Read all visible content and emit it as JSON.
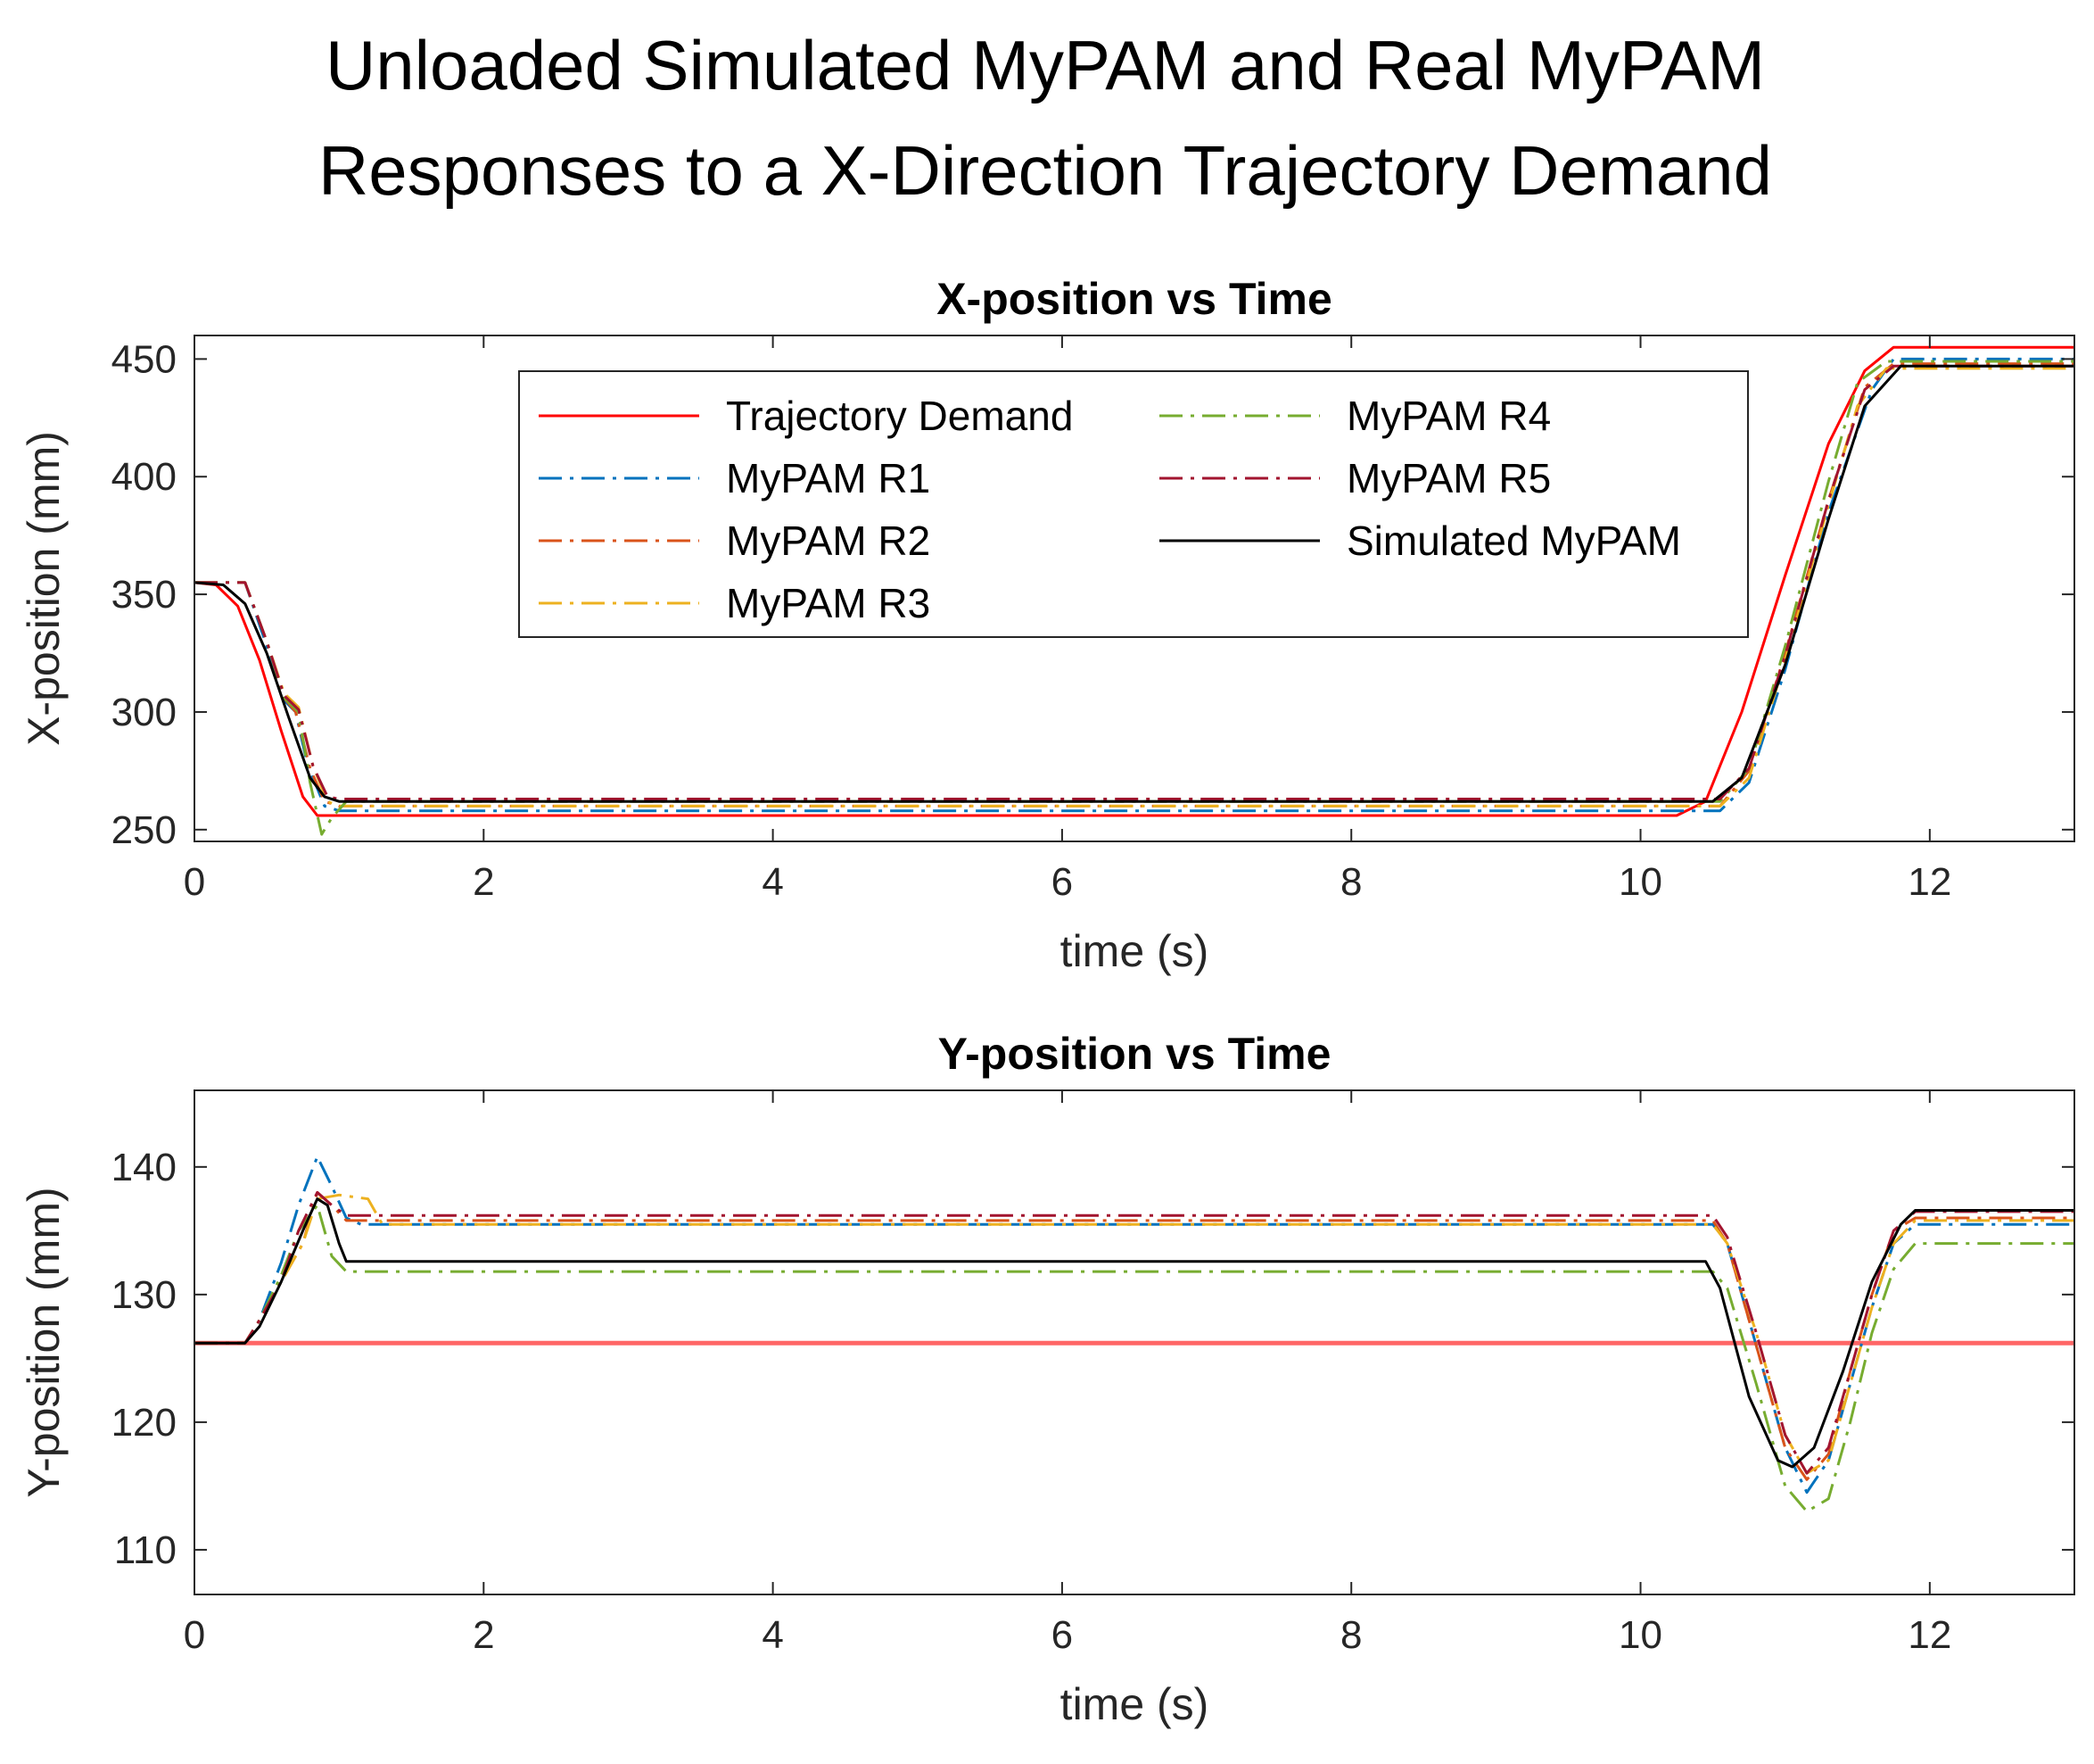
{
  "figure_title_line1": "Unloaded Simulated MyPAM and Real MyPAM",
  "figure_title_line2": "Responses to a X-Direction Trajectory Demand",
  "chart_data": [
    {
      "type": "line",
      "id": "xpos",
      "title": "X-position vs Time",
      "xlabel": "time (s)",
      "ylabel": "X-position (mm)",
      "xlim": [
        0,
        13
      ],
      "ylim": [
        245,
        460
      ],
      "xticks": [
        0,
        2,
        4,
        6,
        8,
        10,
        12
      ],
      "yticks": [
        250,
        300,
        350,
        400,
        450
      ],
      "legend_position": "top-center",
      "series": [
        {
          "name": "Trajectory Demand",
          "color": "#ff0000",
          "dash": "solid",
          "x": [
            0,
            0.15,
            0.3,
            0.45,
            0.6,
            0.75,
            0.85,
            10.25,
            10.45,
            10.7,
            11.0,
            11.3,
            11.55,
            11.75,
            13
          ],
          "y": [
            355,
            354,
            345,
            322,
            292,
            264,
            256,
            256,
            262,
            300,
            358,
            414,
            445,
            455,
            455
          ]
        },
        {
          "name": "MyPAM R1",
          "color": "#0072bd",
          "dash": "dashdot",
          "x": [
            0,
            0.35,
            0.5,
            0.62,
            0.7,
            0.78,
            0.9,
            1.0,
            10.55,
            10.75,
            11.0,
            11.3,
            11.6,
            11.75,
            13
          ],
          "y": [
            355,
            355,
            328,
            305,
            300,
            278,
            260,
            258,
            258,
            270,
            318,
            385,
            437,
            450,
            450
          ]
        },
        {
          "name": "MyPAM R2",
          "color": "#d95319",
          "dash": "dashdot",
          "x": [
            0,
            0.35,
            0.5,
            0.62,
            0.7,
            0.8,
            0.9,
            1.0,
            10.55,
            10.75,
            11.0,
            11.3,
            11.55,
            11.75,
            13
          ],
          "y": [
            355,
            355,
            330,
            306,
            300,
            276,
            262,
            260,
            260,
            275,
            325,
            390,
            438,
            448,
            448
          ]
        },
        {
          "name": "MyPAM R3",
          "color": "#edb120",
          "dash": "dashdot",
          "x": [
            0,
            0.35,
            0.5,
            0.62,
            0.72,
            0.82,
            0.92,
            1.0,
            10.55,
            10.75,
            11.0,
            11.3,
            11.5,
            11.7,
            13
          ],
          "y": [
            355,
            355,
            330,
            308,
            302,
            277,
            262,
            260,
            260,
            272,
            322,
            388,
            430,
            446,
            446
          ]
        },
        {
          "name": "MyPAM R4",
          "color": "#77ac30",
          "dash": "dashdot",
          "x": [
            0,
            0.35,
            0.5,
            0.62,
            0.72,
            0.8,
            0.88,
            0.95,
            1.05,
            10.55,
            10.75,
            11.0,
            11.3,
            11.5,
            11.7,
            13
          ],
          "y": [
            355,
            355,
            330,
            306,
            300,
            270,
            248,
            255,
            262,
            262,
            276,
            328,
            398,
            440,
            449,
            449
          ]
        },
        {
          "name": "MyPAM R5",
          "color": "#a2142f",
          "dash": "dashdot",
          "x": [
            0,
            0.35,
            0.5,
            0.62,
            0.72,
            0.82,
            0.92,
            1.0,
            10.55,
            10.75,
            11.0,
            11.3,
            11.55,
            11.75,
            13
          ],
          "y": [
            355,
            355,
            330,
            307,
            301,
            277,
            264,
            263,
            263,
            276,
            324,
            390,
            437,
            447,
            447
          ]
        },
        {
          "name": "Simulated MyPAM",
          "color": "#000000",
          "dash": "solid",
          "x": [
            0,
            0.2,
            0.35,
            0.5,
            0.65,
            0.8,
            0.9,
            1.0,
            10.5,
            10.7,
            11.0,
            11.3,
            11.55,
            11.8,
            13
          ],
          "y": [
            355,
            354,
            346,
            325,
            298,
            272,
            264,
            262,
            262,
            272,
            320,
            382,
            430,
            447,
            447
          ]
        }
      ]
    },
    {
      "type": "line",
      "id": "ypos",
      "title": "Y-position vs Time",
      "xlabel": "time (s)",
      "ylabel": "Y-position (mm)",
      "xlim": [
        0,
        13
      ],
      "ylim": [
        106.5,
        146
      ],
      "xticks": [
        0,
        2,
        4,
        6,
        8,
        10,
        12
      ],
      "yticks": [
        110,
        120,
        130,
        140
      ],
      "series": [
        {
          "name": "Trajectory Demand",
          "color": "#ff0000",
          "dash": "solid",
          "x": [
            0,
            13
          ],
          "y": [
            126.2,
            126.2
          ]
        },
        {
          "name": "MyPAM R1",
          "color": "#0072bd",
          "dash": "dashdot",
          "x": [
            0,
            0.35,
            0.45,
            0.6,
            0.72,
            0.85,
            0.95,
            1.05,
            1.15,
            1.3,
            10.5,
            10.6,
            10.8,
            11.0,
            11.15,
            11.3,
            11.45,
            11.6,
            11.75,
            11.9,
            13
          ],
          "y": [
            126.2,
            126.2,
            128,
            132.5,
            137,
            140.8,
            138.5,
            136,
            135.5,
            135.5,
            135.5,
            134,
            126,
            118,
            114.5,
            117,
            123,
            129,
            134,
            135.5,
            135.5
          ]
        },
        {
          "name": "MyPAM R2",
          "color": "#d95319",
          "dash": "dashdot",
          "x": [
            0,
            0.35,
            0.45,
            0.6,
            0.75,
            0.85,
            0.95,
            1.05,
            1.2,
            10.5,
            10.6,
            10.8,
            11.0,
            11.15,
            11.3,
            11.45,
            11.6,
            11.75,
            11.9,
            13
          ],
          "y": [
            126.2,
            126.2,
            128,
            131,
            134,
            138,
            137,
            135.8,
            135.8,
            135.8,
            134,
            126,
            118,
            115.5,
            117.5,
            124,
            130,
            135,
            136,
            136
          ]
        },
        {
          "name": "MyPAM R3",
          "color": "#edb120",
          "dash": "dashdot",
          "x": [
            0,
            0.35,
            0.45,
            0.6,
            0.75,
            0.85,
            1.0,
            1.2,
            1.3,
            10.5,
            10.6,
            10.8,
            11.0,
            11.15,
            11.3,
            11.45,
            11.6,
            11.75,
            11.9,
            13
          ],
          "y": [
            126.2,
            126.2,
            128,
            131,
            134,
            137.5,
            137.8,
            137.5,
            135.5,
            135.5,
            134,
            127,
            119,
            116,
            117,
            123,
            129,
            134,
            135.8,
            135.8
          ]
        },
        {
          "name": "MyPAM R4",
          "color": "#77ac30",
          "dash": "dashdot",
          "x": [
            0,
            0.35,
            0.45,
            0.6,
            0.72,
            0.85,
            0.95,
            1.05,
            1.2,
            10.5,
            10.6,
            10.8,
            11.0,
            11.15,
            11.3,
            11.45,
            11.6,
            11.75,
            11.9,
            13
          ],
          "y": [
            126.2,
            126.2,
            128,
            131.5,
            135,
            137,
            133,
            131.8,
            131.8,
            131.8,
            130.5,
            123,
            115,
            113,
            114,
            120,
            127,
            132,
            134,
            134
          ]
        },
        {
          "name": "MyPAM R5",
          "color": "#a2142f",
          "dash": "dashdot",
          "x": [
            0,
            0.35,
            0.45,
            0.6,
            0.72,
            0.85,
            0.95,
            1.05,
            1.2,
            10.5,
            10.6,
            10.8,
            11.0,
            11.15,
            11.3,
            11.45,
            11.6,
            11.75,
            11.9,
            13
          ],
          "y": [
            126.2,
            126.2,
            128,
            131,
            135,
            138,
            137,
            136.2,
            136.2,
            136.2,
            134.5,
            127,
            119,
            116,
            118,
            124,
            130,
            135,
            136.5,
            136.5
          ]
        },
        {
          "name": "Simulated MyPAM",
          "color": "#000000",
          "dash": "solid",
          "x": [
            0,
            0.35,
            0.45,
            0.6,
            0.75,
            0.85,
            0.92,
            1.0,
            1.05,
            10.45,
            10.55,
            10.75,
            10.95,
            11.05,
            11.2,
            11.4,
            11.6,
            11.8,
            11.9,
            13
          ],
          "y": [
            126.2,
            126.2,
            127.5,
            131,
            135,
            137.5,
            137,
            134,
            132.6,
            132.6,
            130.5,
            122,
            117,
            116.5,
            118,
            124,
            131,
            135.5,
            136.6,
            136.6
          ]
        }
      ]
    }
  ]
}
